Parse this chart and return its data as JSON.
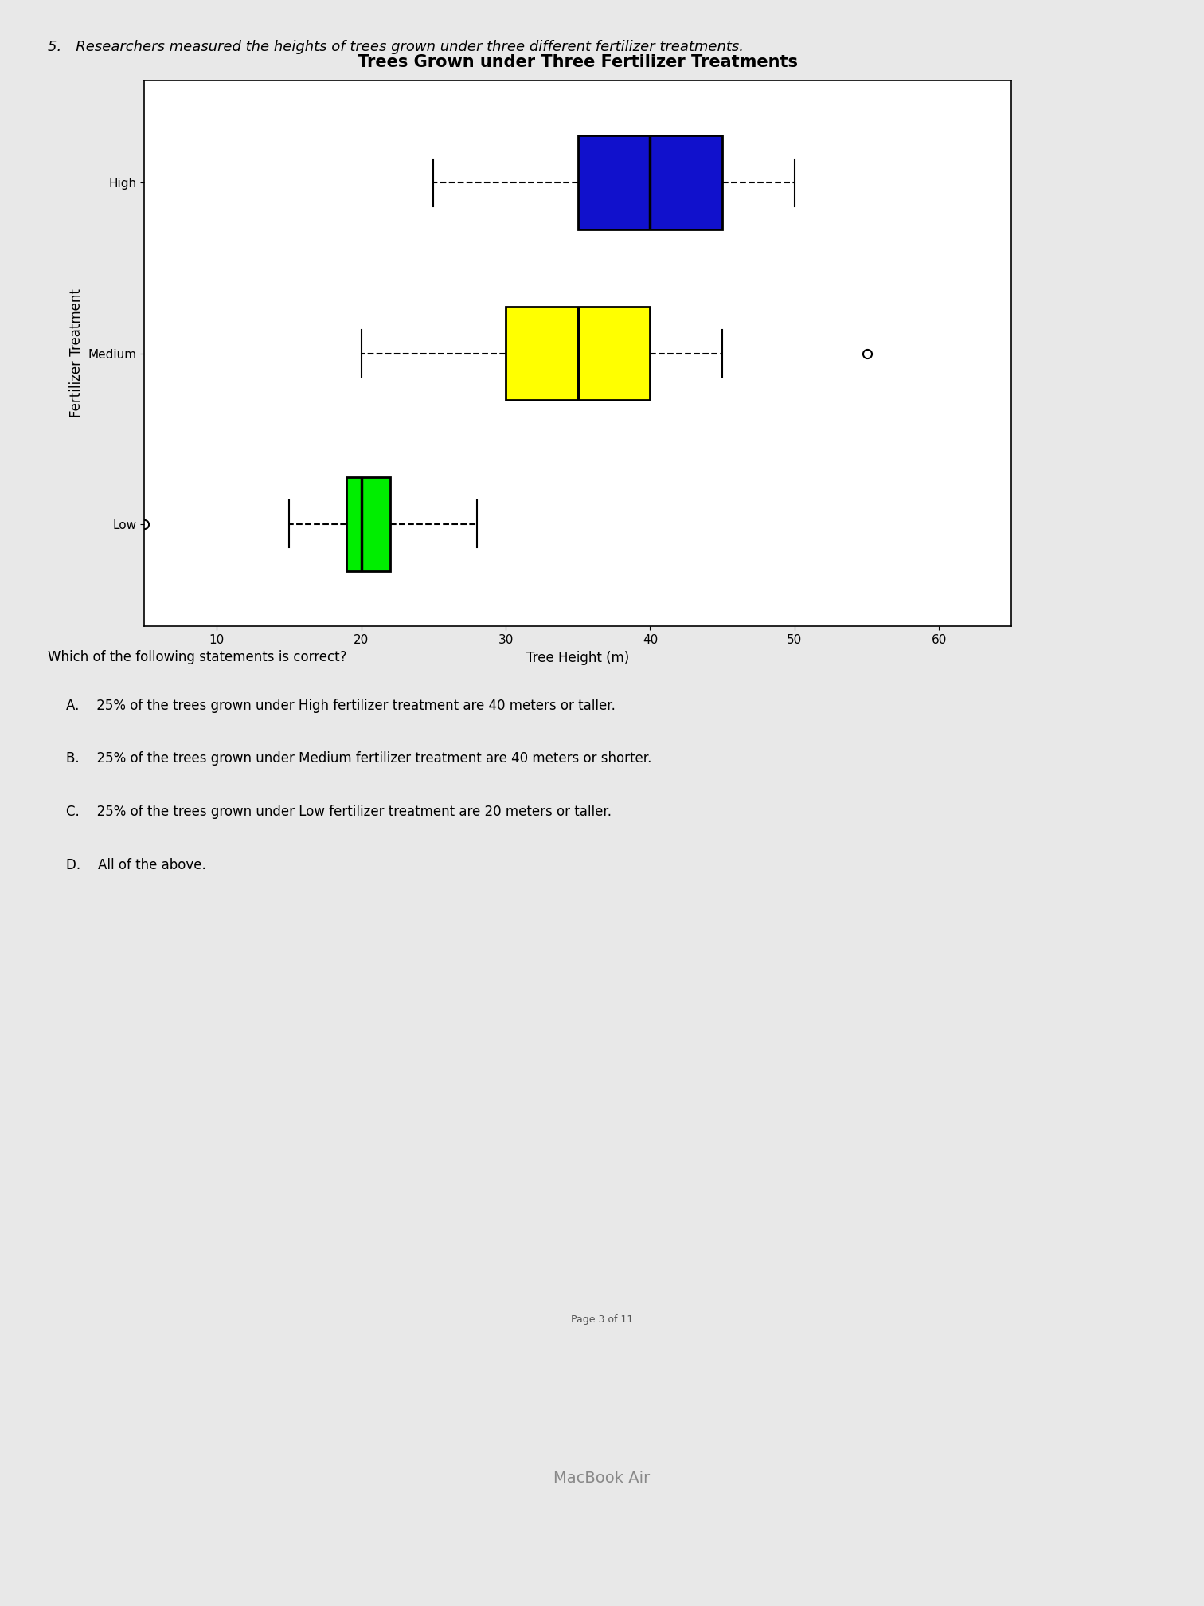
{
  "title": "Trees Grown under Three Fertilizer Treatments",
  "xlabel": "Tree Height (m)",
  "ylabel": "Fertilizer Treatment",
  "question_header": "5. Researchers measured the heights of trees grown under three different fertilizer treatments.",
  "question_prompt": "Which of the following statements is correct?",
  "answers": [
    "A.  25% of the trees grown under High fertilizer treatment are 40 meters or taller.",
    "B.  25% of the trees grown under Medium fertilizer treatment are 40 meters or shorter.",
    "C.  25% of the trees grown under Low fertilizer treatment are 20 meters or taller.",
    "D.  All of the above."
  ],
  "page_label": "Page 3 of 11",
  "cat_order_bottom_to_top": [
    "Low",
    "Medium",
    "High"
  ],
  "boxplot_stats": {
    "High": {
      "whislo": 25,
      "q1": 35,
      "med": 40,
      "q3": 45,
      "whishi": 50,
      "fliers": []
    },
    "Medium": {
      "whislo": 20,
      "q1": 30,
      "med": 35,
      "q3": 40,
      "whishi": 45,
      "fliers": [
        55
      ]
    },
    "Low": {
      "whislo": 15,
      "q1": 19,
      "med": 20,
      "q3": 22,
      "whishi": 28,
      "fliers": [
        5
      ]
    }
  },
  "colors": {
    "High": "#1111CC",
    "Medium": "#FFFF00",
    "Low": "#00EE00"
  },
  "xlim": [
    5,
    65
  ],
  "xticks": [
    10,
    20,
    30,
    40,
    50,
    60
  ],
  "background_color": "#f0f0f0",
  "chart_background": "#d8d8d8",
  "title_fontsize": 15,
  "axis_label_fontsize": 12,
  "tick_fontsize": 11,
  "page_figsize": [
    15.12,
    20.16
  ],
  "dpi": 100
}
